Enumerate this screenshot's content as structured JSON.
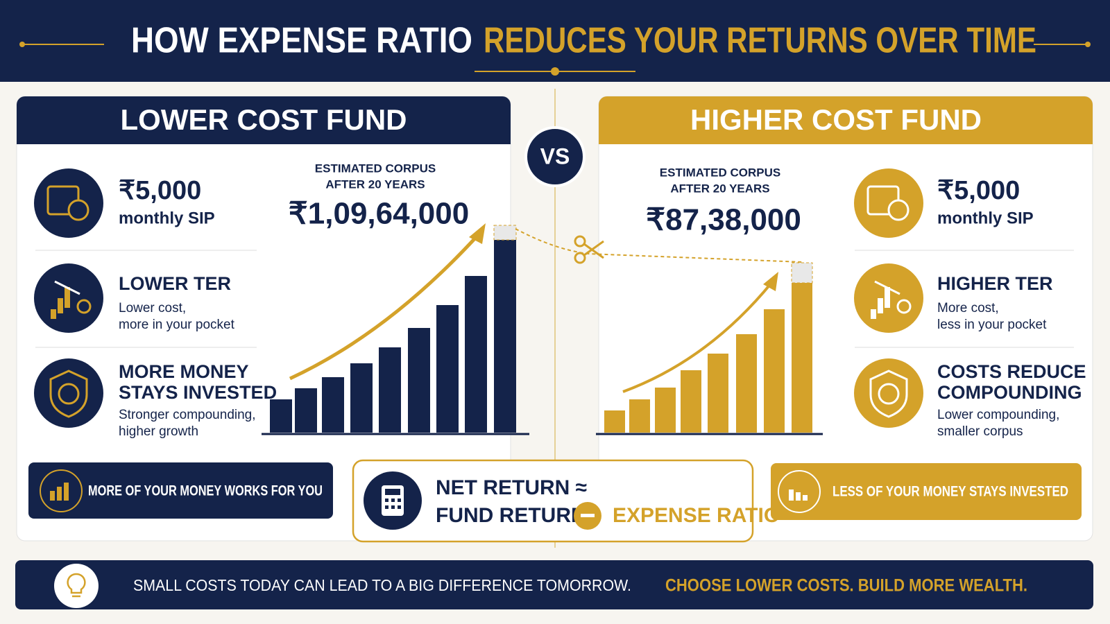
{
  "header": {
    "title_part1": "HOW EXPENSE RATIO",
    "title_part2": "REDUCES YOUR RETURNS OVER TIME"
  },
  "vs": "VS",
  "left": {
    "heading": "LOWER COST FUND",
    "corpus_label": [
      "ESTIMATED CORPUS",
      "AFTER 20 YEARS"
    ],
    "corpus": "₹1,09,64,000",
    "features": [
      {
        "title": [
          "₹5,000"
        ],
        "text": [
          "monthly SIP"
        ]
      },
      {
        "title": [
          "LOWER TER"
        ],
        "text": [
          "Lower cost,",
          "more in your pocket"
        ]
      },
      {
        "title": [
          "MORE MONEY",
          "STAYS INVESTED"
        ],
        "text": [
          "Stronger compounding,",
          "higher growth"
        ]
      }
    ],
    "banner": "MORE OF YOUR MONEY WORKS FOR YOU"
  },
  "right": {
    "heading": "HIGHER COST FUND",
    "corpus_label": [
      "ESTIMATED CORPUS",
      "AFTER 20 YEARS"
    ],
    "corpus": "₹87,38,000",
    "features": [
      {
        "title": [
          "₹5,000"
        ],
        "text": [
          "monthly SIP"
        ]
      },
      {
        "title": [
          "HIGHER TER"
        ],
        "text": [
          "More cost,",
          "less in your pocket"
        ]
      },
      {
        "title": [
          "COSTS REDUCE",
          "COMPOUNDING"
        ],
        "text": [
          "Lower compounding,",
          "smaller corpus"
        ]
      }
    ],
    "banner": "LESS OF YOUR MONEY STAYS INVESTED"
  },
  "formula": {
    "line1": "NET RETURN ≈",
    "line2": "FUND RETURN",
    "line3": "EXPENSE RATIO"
  },
  "footer": {
    "text": "SMALL COSTS TODAY CAN LEAD TO A BIG DIFFERENCE TOMORROW.",
    "highlight": "CHOOSE LOWER COSTS. BUILD MORE WEALTH."
  }
}
